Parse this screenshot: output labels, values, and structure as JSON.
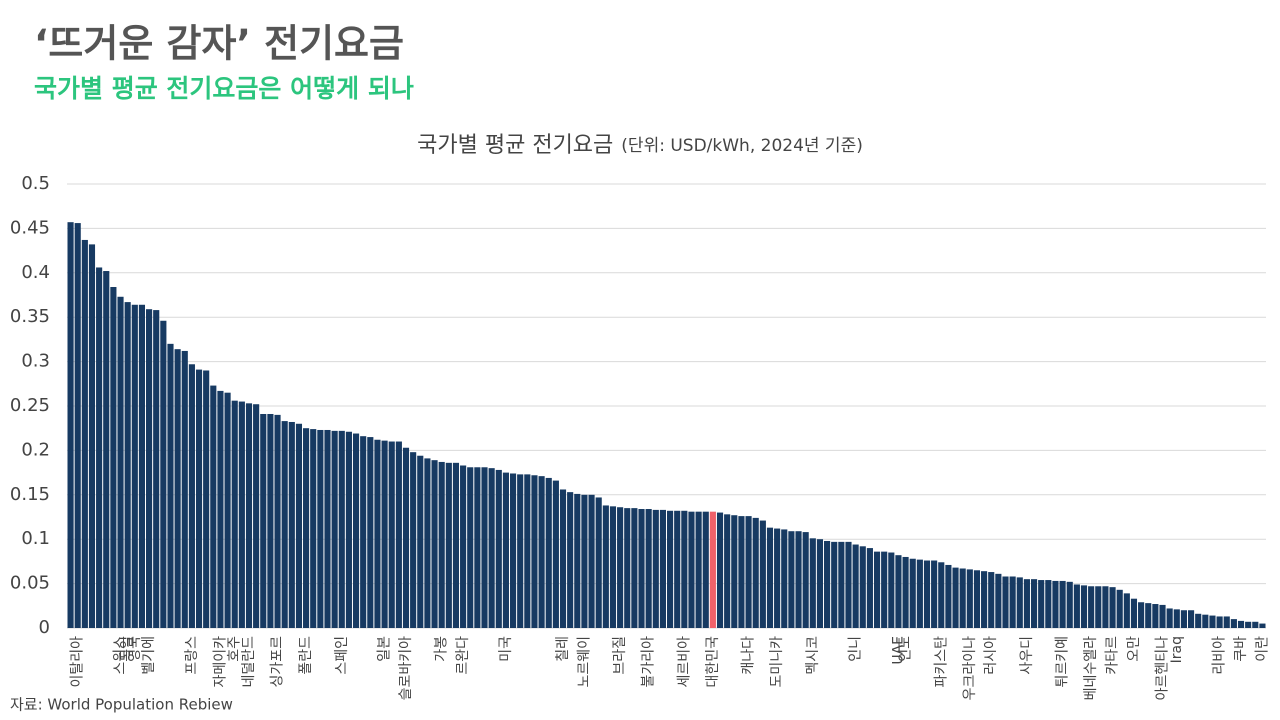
{
  "header": {
    "title": "‘뜨거운 감자’ 전기요금",
    "subtitle": "국가별 평균 전기요금은 어떻게 되나"
  },
  "source": "자료: World Population Rebiew",
  "chart_data": {
    "type": "bar",
    "title": "국가별 평균 전기요금",
    "title_note": "(단위: USD/kWh, 2024년 기준)",
    "color": "#173a62",
    "highlight": {
      "category": "대한민국",
      "color": "#f0626a"
    },
    "ylim": [
      0,
      0.5
    ],
    "yticks": [
      0,
      0.05,
      0.1,
      0.15,
      0.2,
      0.25,
      0.3,
      0.35,
      0.4,
      0.45,
      0.5
    ],
    "grid": true,
    "categories": [
      null,
      "이탈리아",
      null,
      null,
      null,
      null,
      null,
      "스위스",
      "독일",
      "영국",
      null,
      "벨기에",
      null,
      null,
      null,
      null,
      null,
      "프랑스",
      null,
      null,
      null,
      "자메이카",
      null,
      "호주",
      null,
      "네덜란드",
      null,
      null,
      null,
      "싱가포르",
      null,
      null,
      null,
      "폴란드",
      null,
      null,
      null,
      null,
      "스페인",
      null,
      null,
      null,
      null,
      null,
      "일본",
      null,
      null,
      "슬로바키아",
      null,
      null,
      null,
      null,
      "가봉",
      null,
      null,
      "르완다",
      null,
      null,
      null,
      null,
      null,
      "미국",
      null,
      null,
      null,
      null,
      null,
      null,
      null,
      "칠레",
      null,
      null,
      "노르웨이",
      null,
      null,
      null,
      null,
      "브라질",
      null,
      null,
      null,
      "불가리아",
      null,
      null,
      null,
      null,
      "세르비아",
      null,
      null,
      null,
      "대한민국",
      null,
      null,
      null,
      null,
      "캐나다",
      null,
      null,
      null,
      "도미니카",
      null,
      null,
      null,
      null,
      "멕시코",
      null,
      null,
      null,
      null,
      null,
      "인니",
      null,
      null,
      null,
      null,
      null,
      "UAE",
      "인도",
      null,
      null,
      null,
      null,
      "파키스탄",
      null,
      null,
      null,
      "우크라이나",
      null,
      null,
      "러시아",
      null,
      null,
      null,
      null,
      "사우디",
      null,
      null,
      null,
      null,
      "튀르키예",
      null,
      null,
      null,
      "베네수엘라",
      null,
      null,
      "카타르",
      null,
      null,
      "오만",
      null,
      null,
      null,
      "아르헨티나",
      null,
      "Iraq",
      null,
      null,
      null,
      null,
      null,
      "리비아",
      null,
      null,
      "쿠바",
      null,
      null,
      "이란"
    ],
    "values": [
      0.457,
      0.456,
      0.437,
      0.432,
      0.406,
      0.402,
      0.384,
      0.373,
      0.367,
      0.364,
      0.364,
      0.359,
      0.358,
      0.346,
      0.32,
      0.314,
      0.312,
      0.297,
      0.291,
      0.29,
      0.273,
      0.267,
      0.265,
      0.256,
      0.255,
      0.253,
      0.252,
      0.241,
      0.241,
      0.24,
      0.233,
      0.232,
      0.23,
      0.225,
      0.224,
      0.223,
      0.223,
      0.222,
      0.222,
      0.221,
      0.219,
      0.216,
      0.215,
      0.212,
      0.211,
      0.21,
      0.21,
      0.203,
      0.198,
      0.194,
      0.191,
      0.189,
      0.187,
      0.186,
      0.186,
      0.183,
      0.181,
      0.181,
      0.181,
      0.18,
      0.178,
      0.175,
      0.174,
      0.173,
      0.173,
      0.172,
      0.171,
      0.169,
      0.166,
      0.156,
      0.153,
      0.151,
      0.15,
      0.15,
      0.147,
      0.138,
      0.137,
      0.136,
      0.135,
      0.135,
      0.134,
      0.134,
      0.133,
      0.133,
      0.132,
      0.132,
      0.132,
      0.131,
      0.131,
      0.131,
      0.131,
      0.13,
      0.128,
      0.127,
      0.126,
      0.126,
      0.124,
      0.121,
      0.113,
      0.112,
      0.111,
      0.109,
      0.109,
      0.108,
      0.101,
      0.1,
      0.098,
      0.097,
      0.097,
      0.097,
      0.094,
      0.092,
      0.09,
      0.086,
      0.086,
      0.085,
      0.082,
      0.08,
      0.078,
      0.077,
      0.076,
      0.076,
      0.074,
      0.071,
      0.068,
      0.067,
      0.066,
      0.065,
      0.064,
      0.063,
      0.061,
      0.058,
      0.058,
      0.057,
      0.055,
      0.055,
      0.054,
      0.054,
      0.053,
      0.053,
      0.052,
      0.049,
      0.048,
      0.047,
      0.047,
      0.047,
      0.046,
      0.043,
      0.039,
      0.033,
      0.029,
      0.028,
      0.027,
      0.026,
      0.022,
      0.021,
      0.02,
      0.02,
      0.016,
      0.015,
      0.014,
      0.013,
      0.013,
      0.01,
      0.008,
      0.007,
      0.007,
      0.005
    ]
  }
}
